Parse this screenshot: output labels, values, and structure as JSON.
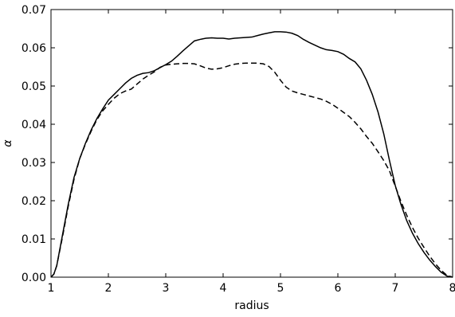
{
  "chart_data": {
    "type": "line",
    "title": "",
    "xlabel": "radius",
    "ylabel": "α",
    "xlim": [
      1,
      8
    ],
    "ylim": [
      0,
      0.07
    ],
    "xticks": [
      1,
      2,
      3,
      4,
      5,
      6,
      7,
      8
    ],
    "xtick_labels": [
      "1",
      "2",
      "3",
      "4",
      "5",
      "6",
      "7",
      "8"
    ],
    "yticks": [
      0,
      0.01,
      0.02,
      0.03,
      0.04,
      0.05,
      0.06,
      0.07
    ],
    "ytick_labels": [
      "0.00",
      "0.01",
      "0.02",
      "0.03",
      "0.04",
      "0.05",
      "0.06",
      "0.07"
    ],
    "grid": false,
    "legend": "none",
    "series": [
      {
        "style": "solid",
        "color": "#000000",
        "x": [
          1.0,
          1.05,
          1.1,
          1.2,
          1.3,
          1.4,
          1.5,
          1.6,
          1.7,
          1.8,
          1.9,
          2.0,
          2.1,
          2.2,
          2.3,
          2.4,
          2.5,
          2.6,
          2.7,
          2.8,
          2.9,
          3.0,
          3.1,
          3.2,
          3.3,
          3.4,
          3.5,
          3.6,
          3.7,
          3.8,
          3.9,
          4.0,
          4.1,
          4.2,
          4.3,
          4.4,
          4.5,
          4.6,
          4.7,
          4.8,
          4.9,
          5.0,
          5.1,
          5.2,
          5.3,
          5.4,
          5.5,
          5.6,
          5.7,
          5.8,
          5.9,
          6.0,
          6.1,
          6.2,
          6.3,
          6.4,
          6.5,
          6.6,
          6.7,
          6.8,
          6.9,
          7.0,
          7.1,
          7.2,
          7.3,
          7.4,
          7.5,
          7.6,
          7.7,
          7.8,
          7.9,
          8.0
        ],
        "y": [
          0.0,
          0.0008,
          0.003,
          0.011,
          0.019,
          0.026,
          0.031,
          0.035,
          0.0385,
          0.0415,
          0.044,
          0.0463,
          0.0478,
          0.0493,
          0.0508,
          0.052,
          0.0528,
          0.0533,
          0.0535,
          0.054,
          0.0548,
          0.0556,
          0.0565,
          0.0578,
          0.0592,
          0.0605,
          0.0618,
          0.0622,
          0.0625,
          0.0626,
          0.0625,
          0.0625,
          0.0623,
          0.0625,
          0.0626,
          0.0627,
          0.0628,
          0.0632,
          0.0636,
          0.0639,
          0.0642,
          0.0642,
          0.0641,
          0.0638,
          0.0632,
          0.0622,
          0.0614,
          0.0607,
          0.06,
          0.0595,
          0.0593,
          0.059,
          0.0583,
          0.0572,
          0.0563,
          0.0545,
          0.0515,
          0.0478,
          0.0432,
          0.0375,
          0.0305,
          0.024,
          0.019,
          0.0148,
          0.0115,
          0.0088,
          0.0065,
          0.0045,
          0.0028,
          0.0013,
          0.0003,
          0.0
        ]
      },
      {
        "style": "dashed",
        "color": "#000000",
        "x": [
          1.0,
          1.05,
          1.1,
          1.2,
          1.3,
          1.4,
          1.5,
          1.6,
          1.7,
          1.8,
          1.9,
          2.0,
          2.1,
          2.2,
          2.3,
          2.4,
          2.5,
          2.6,
          2.7,
          2.8,
          2.9,
          3.0,
          3.1,
          3.2,
          3.3,
          3.4,
          3.5,
          3.6,
          3.7,
          3.8,
          3.9,
          4.0,
          4.1,
          4.2,
          4.3,
          4.4,
          4.5,
          4.6,
          4.7,
          4.8,
          4.9,
          5.0,
          5.1,
          5.2,
          5.3,
          5.4,
          5.5,
          5.6,
          5.7,
          5.8,
          5.9,
          6.0,
          6.1,
          6.2,
          6.3,
          6.4,
          6.5,
          6.6,
          6.7,
          6.8,
          6.9,
          7.0,
          7.1,
          7.2,
          7.3,
          7.4,
          7.5,
          7.6,
          7.7,
          7.8,
          7.9,
          8.0
        ],
        "y": [
          0.0,
          0.0008,
          0.003,
          0.0105,
          0.0185,
          0.0255,
          0.031,
          0.0348,
          0.0382,
          0.0412,
          0.0435,
          0.0452,
          0.0468,
          0.048,
          0.0487,
          0.0492,
          0.0505,
          0.0518,
          0.0528,
          0.0537,
          0.0549,
          0.0555,
          0.0557,
          0.0558,
          0.0559,
          0.0559,
          0.0558,
          0.0553,
          0.0547,
          0.0544,
          0.0545,
          0.0548,
          0.0553,
          0.0557,
          0.0559,
          0.056,
          0.056,
          0.056,
          0.0558,
          0.0551,
          0.0536,
          0.0515,
          0.0497,
          0.0487,
          0.0482,
          0.0478,
          0.0474,
          0.047,
          0.0466,
          0.046,
          0.0452,
          0.0442,
          0.0431,
          0.042,
          0.0405,
          0.0388,
          0.0368,
          0.035,
          0.0328,
          0.0305,
          0.0278,
          0.0238,
          0.0198,
          0.0162,
          0.013,
          0.0102,
          0.0078,
          0.0055,
          0.0035,
          0.0018,
          0.0005,
          0.0
        ]
      }
    ]
  }
}
